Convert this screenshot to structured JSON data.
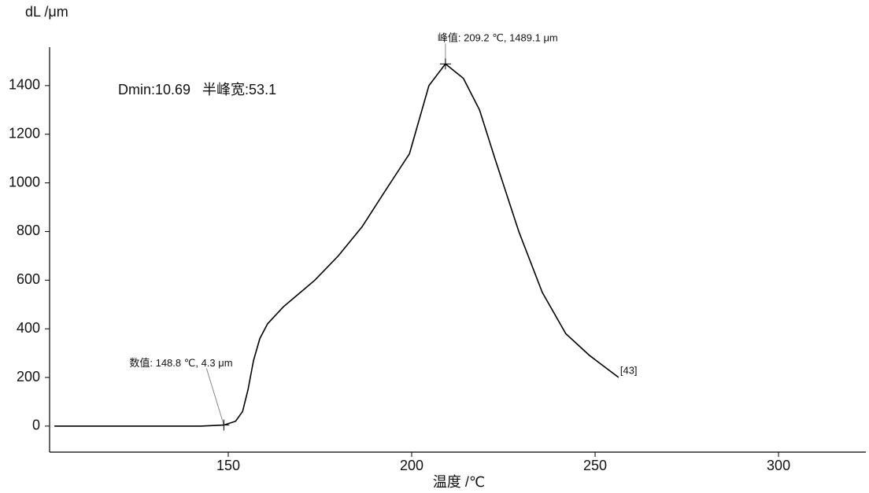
{
  "chart_data": {
    "type": "line",
    "y_label": "dL /μm",
    "x_label": "温度 /℃",
    "info_text": "Dmin:10.69   半峰宽:53.1",
    "end_label": "[43]",
    "series": [
      {
        "name": "dL",
        "color": "#000000",
        "x": [
          102.6,
          142.5,
          148.8,
          152,
          153.9,
          155.4,
          156.9,
          158.6,
          160.7,
          165,
          173.6,
          180,
          186.5,
          192.9,
          199.4,
          204.7,
          209.2,
          214.1,
          218.5,
          222.7,
          229.2,
          235.6,
          242,
          248.5,
          256.4
        ],
        "values": [
          0,
          0,
          4.3,
          20,
          60,
          150,
          270,
          360,
          420,
          490,
          600,
          700,
          820,
          970,
          1120,
          1400,
          1489.1,
          1430,
          1300,
          1100,
          800,
          550,
          380,
          290,
          200
        ]
      }
    ],
    "annotations": [
      {
        "text": "峰值: 209.2 ℃, 1489.1 μm",
        "x": 209.2,
        "y": 1489.1
      },
      {
        "text": "数值: 148.8 ℃, 4.3 μm",
        "x": 148.8,
        "y": 4.3
      }
    ],
    "xlim": [
      101.3,
      323.8
    ],
    "ylim": [
      -107,
      1558
    ],
    "xticks": [
      150,
      200,
      250,
      300
    ],
    "yticks": [
      0,
      200,
      400,
      600,
      800,
      1000,
      1200,
      1400
    ],
    "grid": false
  }
}
